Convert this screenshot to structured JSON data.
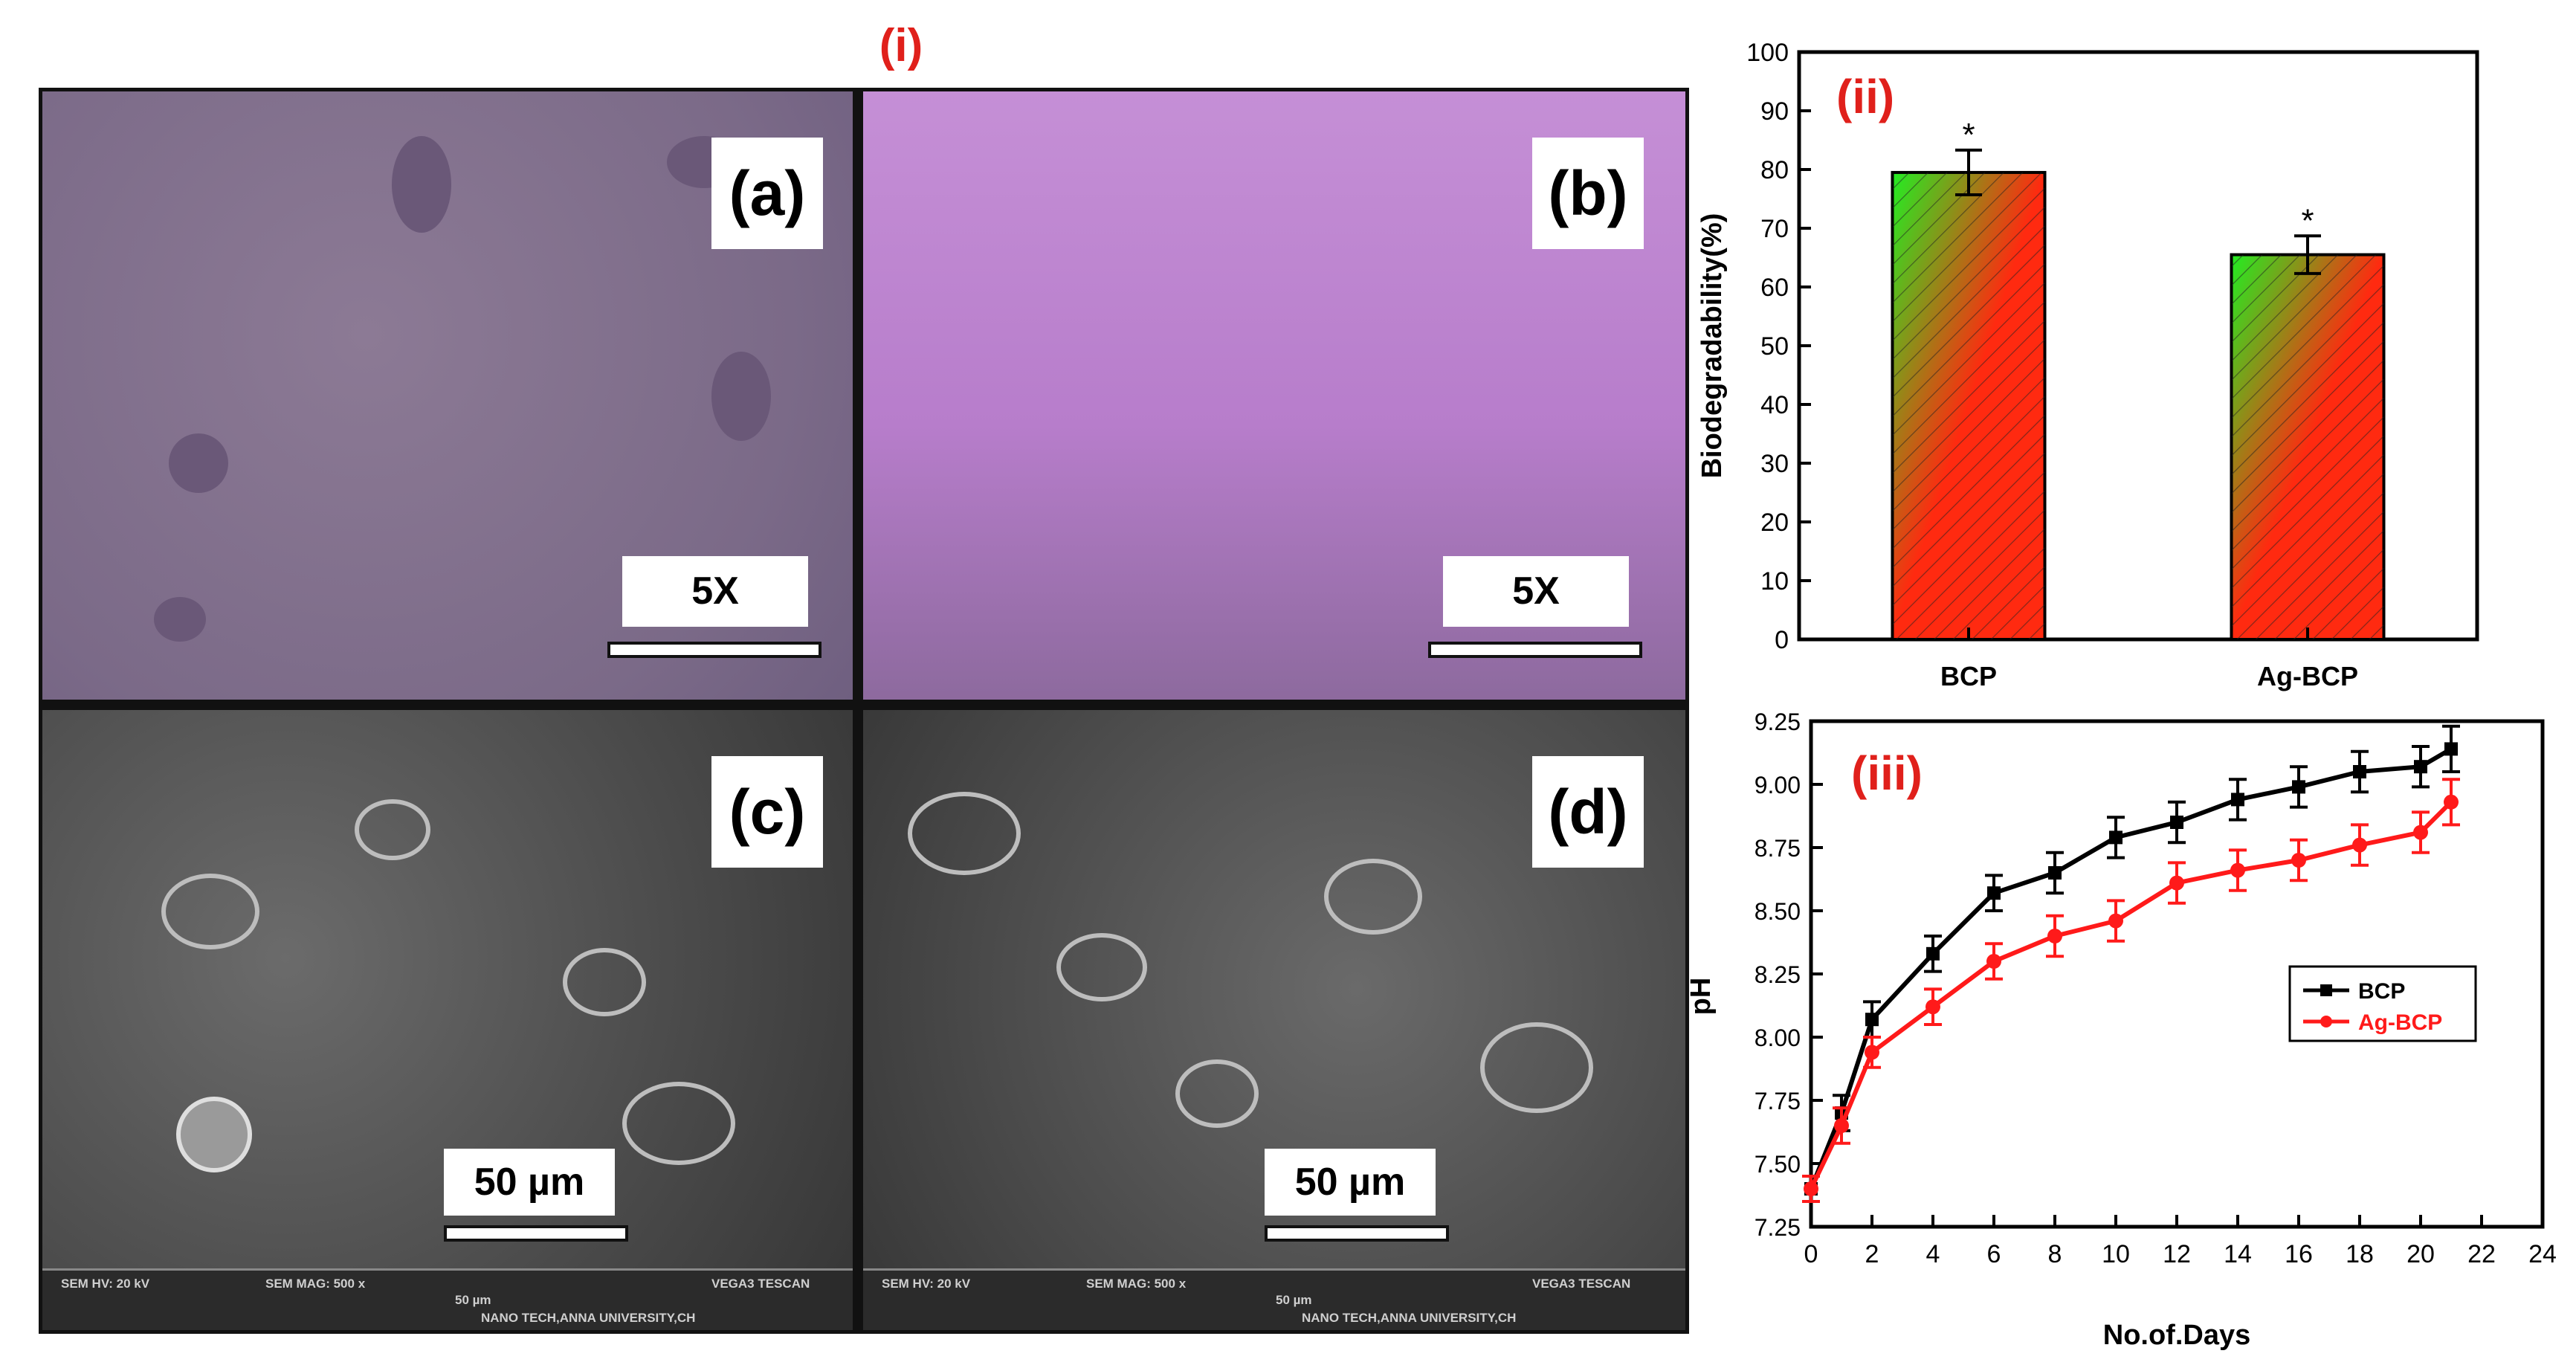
{
  "figure_label": "(i)",
  "micrographs": {
    "a": {
      "label": "(a)",
      "scale": "5X"
    },
    "b": {
      "label": "(b)",
      "scale": "5X"
    },
    "c": {
      "label": "(c)",
      "scale": "50 µm",
      "sem": {
        "hv": "SEM HV: 20 kV",
        "mag": "SEM MAG: 500 x",
        "small_scale": "50 µm",
        "vendor": "VEGA3 TESCAN",
        "lab": "NANO TECH,ANNA UNIVERSITY,CH"
      }
    },
    "d": {
      "label": "(d)",
      "scale": "50 µm",
      "sem": {
        "hv": "SEM HV: 20 kV",
        "mag": "SEM MAG: 500 x",
        "small_scale": "50 µm",
        "vendor": "VEGA3 TESCAN",
        "lab": "NANO TECH,ANNA UNIVERSITY,CH"
      }
    }
  },
  "chart_data": [
    {
      "type": "bar",
      "panel_label": "(ii)",
      "categories": [
        "BCP",
        "Ag-BCP"
      ],
      "values": [
        79.5,
        65.5
      ],
      "errors": [
        3.8,
        3.2
      ],
      "significance": [
        "*",
        "*"
      ],
      "ylabel": "Biodegradability(%)",
      "xlabel": "",
      "ylim": [
        0,
        100
      ],
      "yticks": [
        0,
        10,
        20,
        30,
        40,
        50,
        60,
        70,
        80,
        90,
        100
      ],
      "bar_fill": "hatched green-red gradient"
    },
    {
      "type": "line",
      "panel_label": "(iii)",
      "xlabel": "No.of.Days",
      "ylabel": "pH",
      "xlim": [
        0,
        24
      ],
      "ylim": [
        7.25,
        9.25
      ],
      "xticks": [
        0,
        2,
        4,
        6,
        8,
        10,
        12,
        14,
        16,
        18,
        20,
        22,
        24
      ],
      "yticks": [
        "7.25",
        "7.50",
        "7.75",
        "8.00",
        "8.25",
        "8.50",
        "8.75",
        "9.00",
        "9.25"
      ],
      "legend_position": "right",
      "series": [
        {
          "name": "BCP",
          "color": "#000000",
          "marker": "square",
          "x": [
            0,
            1,
            2,
            4,
            6,
            8,
            10,
            12,
            14,
            16,
            18,
            20,
            21
          ],
          "y": [
            7.4,
            7.7,
            8.07,
            8.33,
            8.57,
            8.65,
            8.79,
            8.85,
            8.94,
            8.99,
            9.05,
            9.07,
            9.14
          ],
          "err": [
            0.05,
            0.07,
            0.07,
            0.07,
            0.07,
            0.08,
            0.08,
            0.08,
            0.08,
            0.08,
            0.08,
            0.08,
            0.09
          ]
        },
        {
          "name": "Ag-BCP",
          "color": "#ff1a1a",
          "marker": "circle",
          "x": [
            0,
            1,
            2,
            4,
            6,
            8,
            10,
            12,
            14,
            16,
            18,
            20,
            21
          ],
          "y": [
            7.4,
            7.65,
            7.94,
            8.12,
            8.3,
            8.4,
            8.46,
            8.61,
            8.66,
            8.7,
            8.76,
            8.81,
            8.93
          ],
          "err": [
            0.05,
            0.07,
            0.06,
            0.07,
            0.07,
            0.08,
            0.08,
            0.08,
            0.08,
            0.08,
            0.08,
            0.08,
            0.09
          ]
        }
      ]
    }
  ]
}
